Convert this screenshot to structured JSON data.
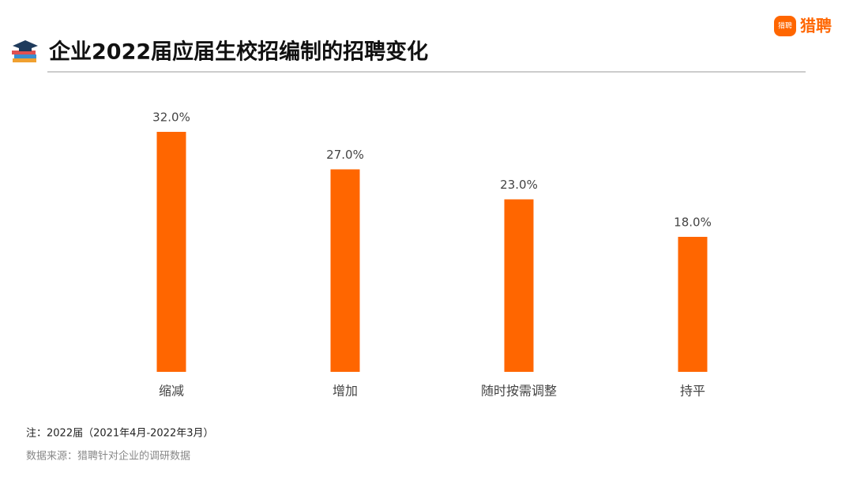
{
  "chart_data": {
    "type": "bar",
    "title": "企业2022届应届生校招编制的招聘变化",
    "categories": [
      "缩减",
      "增加",
      "随时按需调整",
      "持平"
    ],
    "values": [
      32,
      27,
      23,
      18
    ],
    "value_labels": [
      "32.0%",
      "27.0%",
      "23.0%",
      "18.0%"
    ],
    "color": "#ff6600",
    "note": "注：2022届（2021年4月-2022年3月）",
    "source": "数据来源：猎聘针对企业的调研数据",
    "logo": "猎聘"
  }
}
